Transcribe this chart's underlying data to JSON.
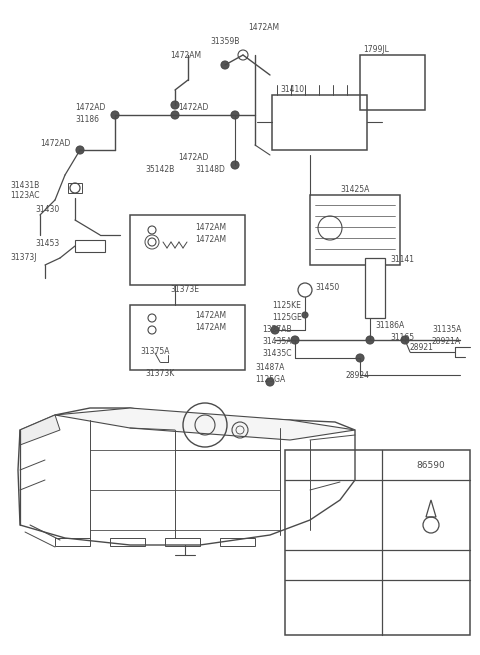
{
  "bg_color": "#ffffff",
  "line_color": "#4a4a4a",
  "fig_width": 4.8,
  "fig_height": 6.55,
  "dpi": 100,
  "xlim": [
    0,
    480
  ],
  "ylim": [
    0,
    655
  ]
}
